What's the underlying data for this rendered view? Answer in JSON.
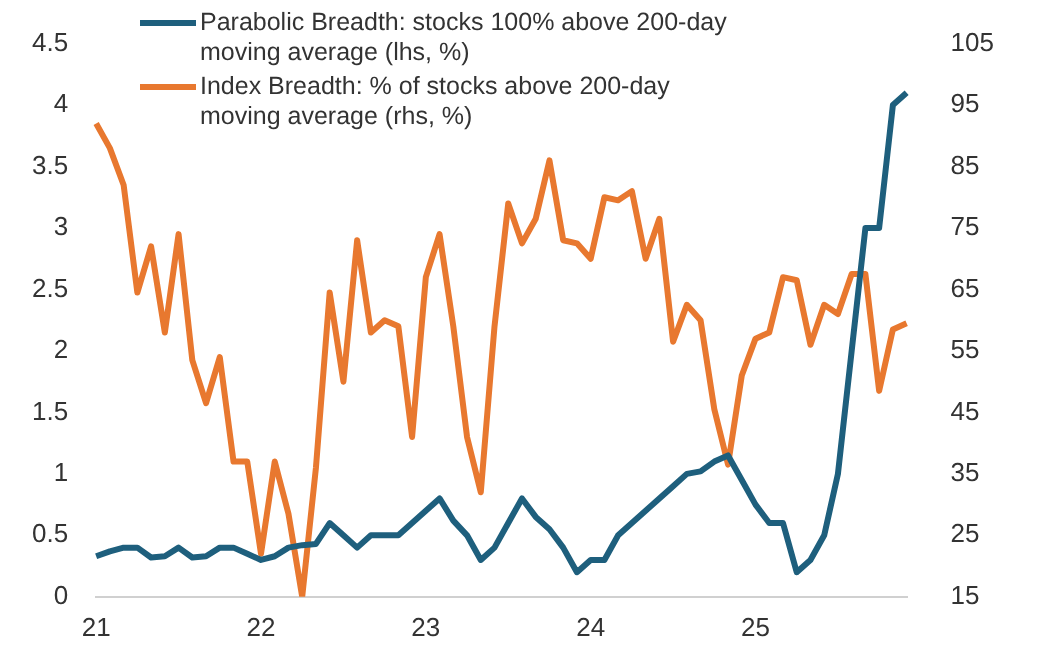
{
  "chart_data": {
    "type": "line",
    "categories": [
      "21",
      null,
      null,
      null,
      null,
      null,
      null,
      null,
      null,
      null,
      null,
      null,
      "22",
      null,
      null,
      null,
      null,
      null,
      null,
      null,
      null,
      null,
      null,
      null,
      "23",
      null,
      null,
      null,
      null,
      null,
      null,
      null,
      null,
      null,
      null,
      null,
      "24",
      null,
      null,
      null,
      null,
      null,
      null,
      null,
      null,
      null,
      null,
      null,
      "25",
      null,
      null,
      null,
      null,
      null,
      null,
      null,
      null,
      null,
      null,
      null
    ],
    "series": [
      {
        "name": "Parabolic Breadth: stocks 100% above 200-day moving average (lhs, %)",
        "color": "#1e5f7d",
        "values": [
          0.33,
          0.37,
          0.4,
          0.4,
          0.32,
          0.33,
          0.4,
          0.32,
          0.33,
          0.4,
          0.4,
          0.35,
          0.3,
          0.33,
          0.4,
          0.42,
          0.43,
          0.6,
          0.5,
          0.4,
          0.5,
          0.5,
          0.5,
          0.6,
          0.7,
          0.8,
          0.62,
          0.5,
          0.3,
          0.4,
          0.6,
          0.8,
          0.65,
          0.55,
          0.4,
          0.2,
          0.3,
          0.3,
          0.5,
          0.6,
          0.7,
          0.8,
          0.9,
          1.0,
          1.02,
          1.1,
          1.15,
          0.95,
          0.75,
          0.6,
          0.6,
          0.2,
          0.3,
          0.5,
          1.0,
          2.0,
          3.0,
          3.0,
          4.0,
          4.1
        ]
      },
      {
        "name": "Index Breadth: % of stocks above 200-day moving average (rhs, %)",
        "color": "#e8782f",
        "axis": "y2",
        "values": [
          92,
          88,
          82,
          64.5,
          72,
          58,
          74,
          53.5,
          46.5,
          54,
          37,
          37,
          22,
          37,
          28.5,
          15,
          36,
          64.5,
          50,
          73,
          58,
          60,
          59,
          41,
          67,
          74,
          59,
          41,
          32,
          59,
          79,
          72.5,
          76.5,
          86,
          73,
          72.5,
          70,
          80,
          79.5,
          81,
          70,
          76.5,
          56.5,
          62.5,
          60,
          45.5,
          36.5,
          51,
          57,
          58,
          67,
          66.5,
          56,
          62.5,
          61,
          67.5,
          67.5,
          48.5,
          58.5,
          59.5
        ]
      }
    ],
    "ylim": [
      0,
      4.5
    ],
    "yticks": [
      0,
      0.5,
      1,
      1.5,
      2,
      2.5,
      3,
      3.5,
      4,
      4.5
    ],
    "y2lim": [
      15,
      105
    ],
    "y2ticks": [
      15,
      25,
      35,
      45,
      55,
      65,
      75,
      85,
      95,
      105
    ],
    "grid": false,
    "legend": "top left",
    "marker": "none",
    "line_style": "solid"
  }
}
